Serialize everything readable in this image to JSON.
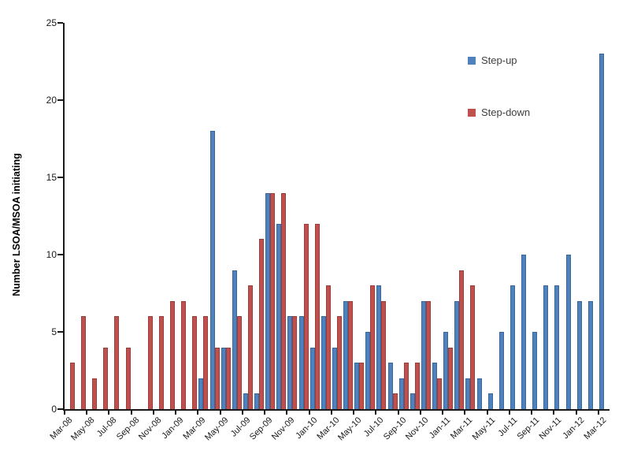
{
  "chart_data": {
    "type": "bar",
    "title": "",
    "xlabel": "",
    "ylabel": "Number LSOA/MSOA initiating",
    "ylim": [
      0,
      25
    ],
    "yticks": [
      0,
      5,
      10,
      15,
      20,
      25
    ],
    "x_tick_label_interval": 2,
    "grid": false,
    "legend_position": "inside-top-right",
    "axis_color": "#1a1a1a",
    "label_color": "#1a1a1a",
    "categories": [
      "Mar-08",
      "Apr-08",
      "May-08",
      "Jun-08",
      "Jul-08",
      "Aug-08",
      "Sep-08",
      "Oct-08",
      "Nov-08",
      "Dec-08",
      "Jan-09",
      "Feb-09",
      "Mar-09",
      "Apr-09",
      "May-09",
      "Jun-09",
      "Jul-09",
      "Aug-09",
      "Sep-09",
      "Oct-09",
      "Nov-09",
      "Dec-09",
      "Jan-10",
      "Feb-10",
      "Mar-10",
      "Apr-10",
      "May-10",
      "Jun-10",
      "Jul-10",
      "Aug-10",
      "Sep-10",
      "Oct-10",
      "Nov-10",
      "Dec-10",
      "Jan-11",
      "Feb-11",
      "Mar-11",
      "Apr-11",
      "May-11",
      "Jun-11",
      "Jul-11",
      "Aug-11",
      "Sep-11",
      "Oct-11",
      "Nov-11",
      "Dec-11",
      "Jan-12",
      "Feb-12",
      "Mar-12"
    ],
    "series": [
      {
        "name": "Step-up",
        "color": "#4F81BD",
        "border_color": "#3A679A",
        "values": [
          0,
          0,
          0,
          0,
          0,
          0,
          0,
          0,
          0,
          0,
          0,
          0,
          2,
          18,
          4,
          9,
          1,
          1,
          14,
          12,
          6,
          6,
          4,
          6,
          4,
          7,
          3,
          5,
          8,
          3,
          2,
          1,
          7,
          3,
          5,
          7,
          2,
          2,
          1,
          5,
          8,
          10,
          5,
          8,
          8,
          10,
          7,
          7,
          23
        ]
      },
      {
        "name": "Step-down",
        "color": "#C0504D",
        "border_color": "#9A3E3B",
        "values": [
          3,
          6,
          2,
          4,
          6,
          4,
          0,
          6,
          6,
          7,
          7,
          6,
          6,
          4,
          4,
          6,
          8,
          11,
          14,
          14,
          6,
          12,
          12,
          8,
          6,
          7,
          3,
          8,
          7,
          1,
          3,
          3,
          7,
          2,
          4,
          9,
          8,
          0,
          0,
          0,
          0,
          0,
          0,
          0,
          0,
          0,
          0,
          0,
          0
        ]
      }
    ]
  }
}
